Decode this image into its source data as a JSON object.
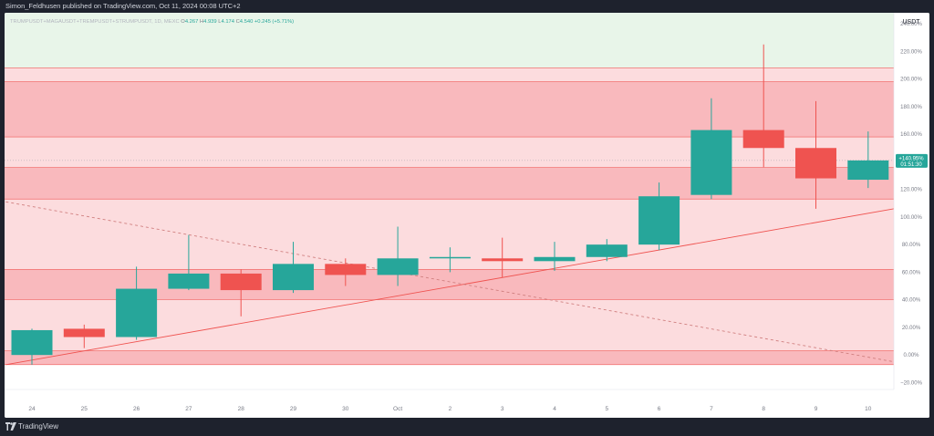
{
  "header": {
    "publisher_line": "Simon_Feldhusen published on TradingView.com, Oct 11, 2024 00:08 UTC+2"
  },
  "footer": {
    "brand": "TradingView"
  },
  "legend": {
    "symbol": "TRUMPUSDT+MAGAUSDT+TREMPUSDT+STRUMPUSDT, 1D, MEXC",
    "o_label": "O",
    "o_value": "4.267",
    "h_label": "H",
    "h_value": "4.939",
    "l_label": "L",
    "l_value": "4.174",
    "c_label": "C",
    "c_value": "4.540",
    "change": "+0.245 (+5.71%)"
  },
  "price_axis": {
    "currency": "USDT",
    "last_value": "+140.95%",
    "countdown": "01:51:30"
  },
  "colors": {
    "up": "#26a69a",
    "down": "#ef5350",
    "green_zone": "#e8f5e9",
    "light_red_zone": "#fcdcde",
    "dark_red_zone": "#f9b9bd",
    "zone_border": "#ef5350"
  },
  "chart_data": {
    "type": "candlestick",
    "title": "",
    "xlabel": "",
    "ylabel": "",
    "y_unit": "%",
    "ylim": [
      -25,
      248
    ],
    "y_ticks": [
      -20,
      0,
      20,
      40,
      60,
      80,
      100,
      120,
      140,
      160,
      180,
      200,
      220,
      240
    ],
    "y_tick_labels": [
      "−20.00%",
      "0.00%",
      "20.00%",
      "40.00%",
      "60.00%",
      "80.00%",
      "100.00%",
      "120.00%",
      "140.00%",
      "160.00%",
      "180.00%",
      "200.00%",
      "220.00%",
      "240.00%"
    ],
    "categories": [
      "24",
      "25",
      "26",
      "27",
      "28",
      "29",
      "30",
      "Oct",
      "2",
      "3",
      "4",
      "5",
      "6",
      "7",
      "8",
      "9",
      "10"
    ],
    "candles": [
      {
        "o": 0,
        "h": 19,
        "l": -7,
        "c": 18
      },
      {
        "o": 19,
        "h": 22,
        "l": 5,
        "c": 13
      },
      {
        "o": 13,
        "h": 64,
        "l": 11,
        "c": 48
      },
      {
        "o": 48,
        "h": 87,
        "l": 47,
        "c": 59
      },
      {
        "o": 59,
        "h": 62,
        "l": 28,
        "c": 47
      },
      {
        "o": 47,
        "h": 82,
        "l": 45,
        "c": 66
      },
      {
        "o": 66,
        "h": 70,
        "l": 50,
        "c": 58
      },
      {
        "o": 58,
        "h": 93,
        "l": 50,
        "c": 70
      },
      {
        "o": 70,
        "h": 78,
        "l": 60,
        "c": 71
      },
      {
        "o": 70,
        "h": 85,
        "l": 56,
        "c": 68
      },
      {
        "o": 68,
        "h": 82,
        "l": 61,
        "c": 71
      },
      {
        "o": 71,
        "h": 84,
        "l": 68,
        "c": 80
      },
      {
        "o": 80,
        "h": 125,
        "l": 76,
        "c": 115
      },
      {
        "o": 116,
        "h": 186,
        "l": 113,
        "c": 163
      },
      {
        "o": 163,
        "h": 225,
        "l": 136,
        "c": 150
      },
      {
        "o": 150,
        "h": 184,
        "l": 106,
        "c": 128
      },
      {
        "o": 127,
        "h": 162,
        "l": 121,
        "c": 141
      }
    ],
    "zones": [
      {
        "from": 208,
        "to": 248,
        "kind": "green"
      },
      {
        "from": 198,
        "to": 208,
        "kind": "light-red"
      },
      {
        "from": 158,
        "to": 198,
        "kind": "dark-red"
      },
      {
        "from": 136,
        "to": 158,
        "kind": "light-red"
      },
      {
        "from": 113,
        "to": 136,
        "kind": "dark-red"
      },
      {
        "from": 62,
        "to": 113,
        "kind": "light-red"
      },
      {
        "from": 40,
        "to": 62,
        "kind": "dark-red"
      },
      {
        "from": 3,
        "to": 40,
        "kind": "light-red"
      },
      {
        "from": -7,
        "to": 3,
        "kind": "dark-red"
      }
    ],
    "trendlines": [
      {
        "style": "solid",
        "x1": -0.5,
        "y1": -7,
        "x2": 16.5,
        "y2": 106
      },
      {
        "style": "dashed",
        "x1": -0.5,
        "y1": 111,
        "x2": 16.5,
        "y2": -5
      }
    ],
    "last_price": 141,
    "grid": false,
    "legend": "top-left"
  }
}
